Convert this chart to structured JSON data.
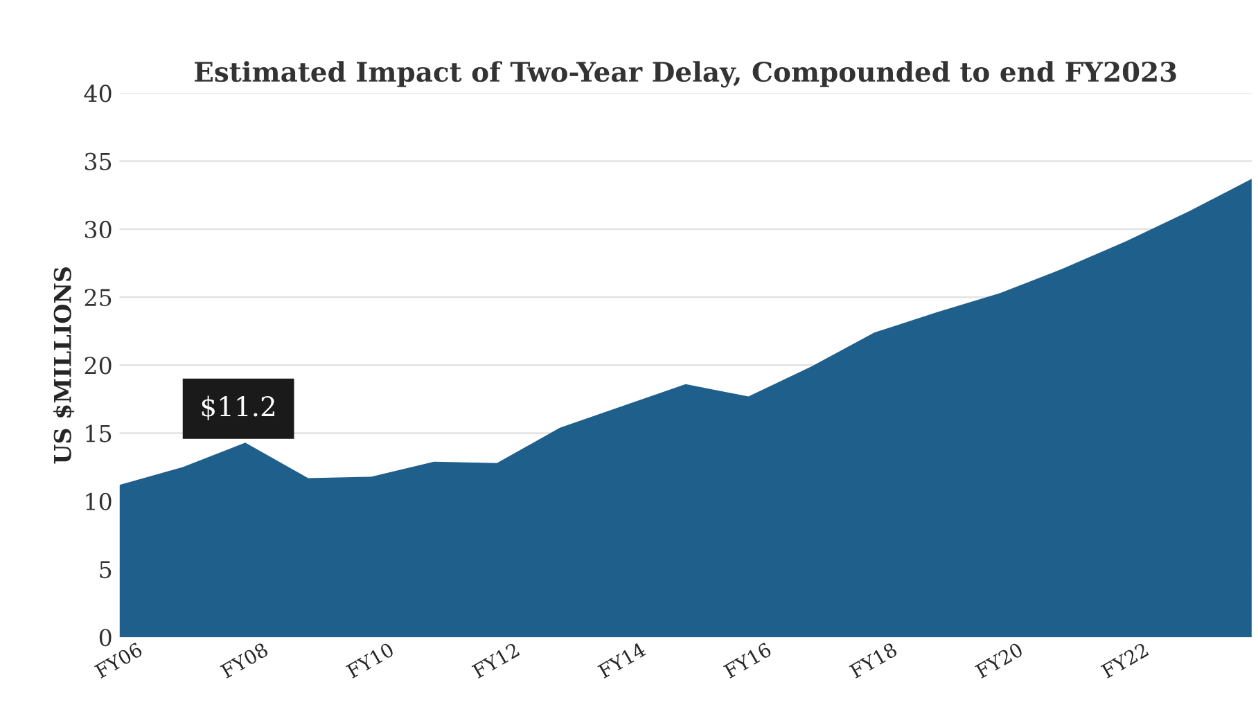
{
  "chart_data": {
    "type": "area",
    "title": "Estimated Impact of Two-Year Delay, Compounded to end FY2023",
    "ylabel": "US $MILLIONS",
    "categories": [
      "FY06",
      null,
      "FY08",
      null,
      "FY10",
      null,
      "FY12",
      null,
      "FY14",
      null,
      "FY16",
      null,
      "FY18",
      null,
      "FY20",
      null,
      "FY22",
      null,
      null
    ],
    "series": [
      {
        "color": "#1f5f8c",
        "values": [
          11.2,
          12.5,
          14.3,
          11.7,
          11.8,
          12.9,
          12.8,
          15.4,
          17.0,
          18.6,
          17.7,
          19.9,
          22.4,
          23.9,
          25.3,
          27.1,
          29.1,
          31.3,
          33.7
        ]
      }
    ],
    "annotations": [
      "$11.2"
    ],
    "ylim": [
      0,
      40
    ],
    "yticks": [
      0,
      5,
      10,
      15,
      20,
      25,
      30,
      35,
      40
    ],
    "grid": "y",
    "legend": false
  }
}
